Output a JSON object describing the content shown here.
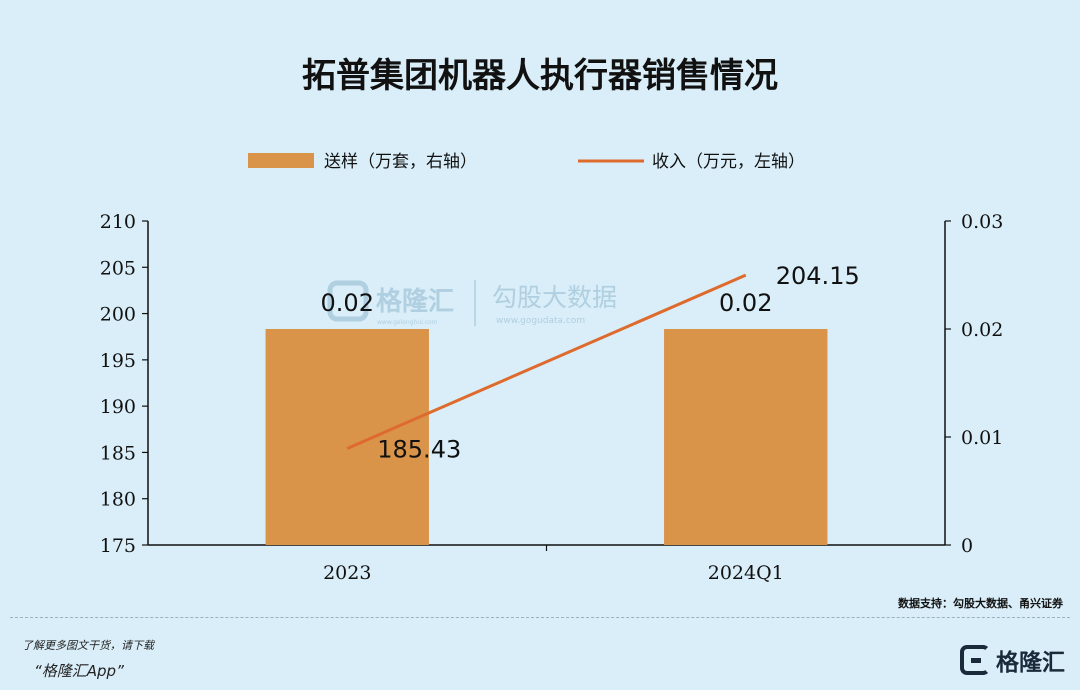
{
  "chart_data": {
    "type": "bar",
    "title": "拓普集团机器人执行器销售情况",
    "categories": [
      "2023",
      "2024Q1"
    ],
    "y_left": {
      "ylim": [
        175,
        210
      ],
      "ticks": [
        "175",
        "180",
        "185",
        "190",
        "195",
        "200",
        "205",
        "210"
      ]
    },
    "y_right": {
      "ylim": [
        0,
        0.03
      ],
      "ticks": [
        "0",
        "0.01",
        "0.02",
        "0.03"
      ]
    },
    "series": [
      {
        "name": "送样（万套，右轴）",
        "type": "bar",
        "axis": "right",
        "values": [
          0.02,
          0.02
        ],
        "labels": [
          "0.02",
          "0.02"
        ],
        "color": "#d99449"
      },
      {
        "name": "收入（万元，左轴）",
        "type": "line",
        "axis": "left",
        "values": [
          185.43,
          204.15
        ],
        "labels": [
          "185.43",
          "204.15"
        ],
        "color": "#de6b2d"
      }
    ],
    "legend": "top",
    "grid": false
  },
  "watermark": {
    "brand1": "格隆汇",
    "brand1_url": "www.gelonghui.com",
    "brand2": "勾股大数据",
    "brand2_url": "www.gogudata.com"
  },
  "source": "数据支持：勾股大数据、甬兴证券",
  "footer": {
    "promo_line1": "了解更多图文干货，请下载",
    "promo_line2": "“格隆汇App”",
    "logo_text": "格隆汇"
  }
}
